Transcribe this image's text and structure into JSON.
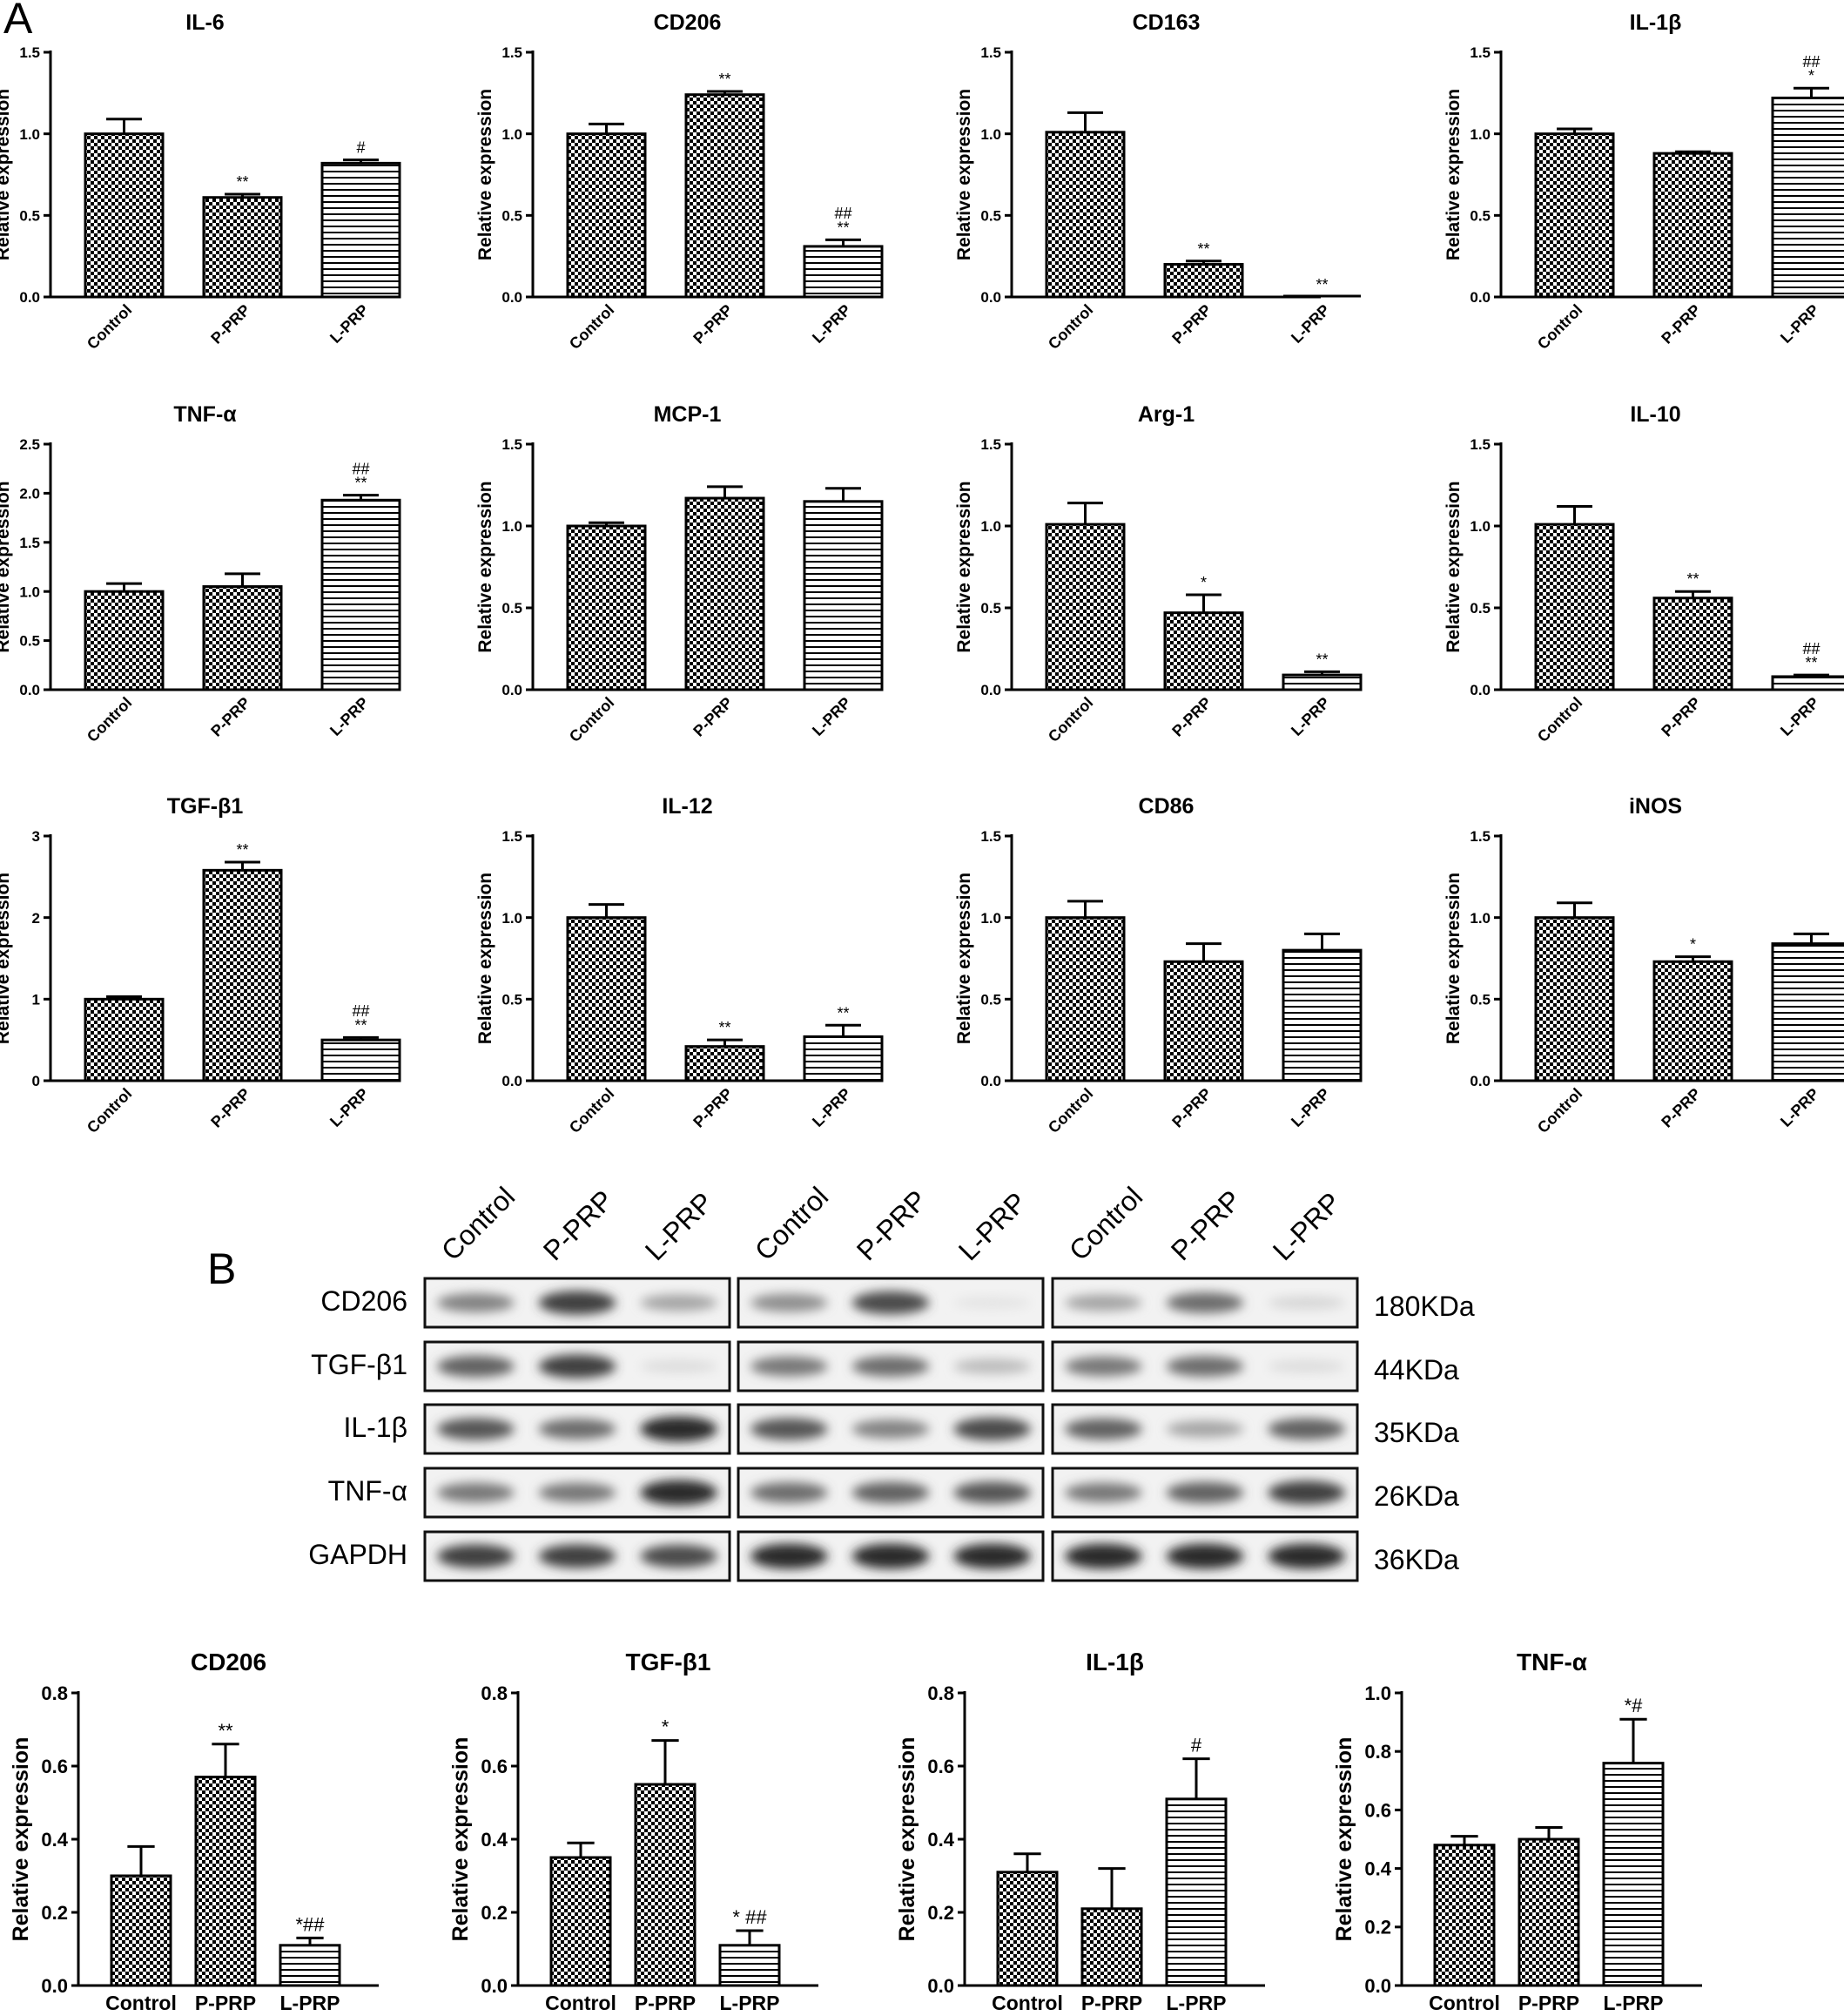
{
  "panel_labels": [
    "A",
    "B"
  ],
  "ylabel": "Relative expression",
  "groups": [
    "Control",
    "P-PRP",
    "L-PRP"
  ],
  "chart_data": [
    {
      "type": "bar",
      "title": "IL-6",
      "categories": [
        "Control",
        "P-PRP",
        "L-PRP"
      ],
      "values": [
        1.0,
        0.61,
        0.82
      ],
      "errors": [
        0.09,
        0.02,
        0.02
      ],
      "annotations": [
        "",
        "**",
        "#"
      ],
      "ylim": [
        0,
        1.5
      ],
      "yticks": [
        "0.0",
        "0.5",
        "1.0",
        "1.5"
      ],
      "xlabel": "",
      "ylabel": "Relative expression"
    },
    {
      "type": "bar",
      "title": "CD206",
      "categories": [
        "Control",
        "P-PRP",
        "L-PRP"
      ],
      "values": [
        1.0,
        1.24,
        0.31
      ],
      "errors": [
        0.06,
        0.02,
        0.04
      ],
      "annotations": [
        "",
        "**",
        "##\n**"
      ],
      "ylim": [
        0,
        1.5
      ],
      "yticks": [
        "0.0",
        "0.5",
        "1.0",
        "1.5"
      ],
      "xlabel": "",
      "ylabel": "Relative expression"
    },
    {
      "type": "bar",
      "title": "CD163",
      "categories": [
        "Control",
        "P-PRP",
        "L-PRP"
      ],
      "values": [
        1.01,
        0.2,
        0.0
      ],
      "errors": [
        0.12,
        0.02,
        0.0
      ],
      "annotations": [
        "",
        "**",
        "**"
      ],
      "ylim": [
        0,
        1.5
      ],
      "yticks": [
        "0.0",
        "0.5",
        "1.0",
        "1.5"
      ],
      "xlabel": "",
      "ylabel": "Relative expression"
    },
    {
      "type": "bar",
      "title": "IL-1β",
      "categories": [
        "Control",
        "P-PRP",
        "L-PRP"
      ],
      "values": [
        1.0,
        0.88,
        1.22
      ],
      "errors": [
        0.03,
        0.01,
        0.06
      ],
      "annotations": [
        "",
        "",
        "##\n*"
      ],
      "ylim": [
        0,
        1.5
      ],
      "yticks": [
        "0.0",
        "0.5",
        "1.0",
        "1.5"
      ],
      "xlabel": "",
      "ylabel": "Relative expression"
    },
    {
      "type": "bar",
      "title": "TNF-α",
      "categories": [
        "Control",
        "P-PRP",
        "L-PRP"
      ],
      "values": [
        1.0,
        1.05,
        1.93
      ],
      "errors": [
        0.08,
        0.13,
        0.05
      ],
      "annotations": [
        "",
        "",
        "##\n**"
      ],
      "ylim": [
        0,
        2.5
      ],
      "yticks": [
        "0.0",
        "0.5",
        "1.0",
        "1.5",
        "2.0",
        "2.5"
      ],
      "xlabel": "",
      "ylabel": "Relative expression"
    },
    {
      "type": "bar",
      "title": "MCP-1",
      "categories": [
        "Control",
        "P-PRP",
        "L-PRP"
      ],
      "values": [
        1.0,
        1.17,
        1.15
      ],
      "errors": [
        0.02,
        0.07,
        0.08
      ],
      "annotations": [
        "",
        "",
        ""
      ],
      "ylim": [
        0,
        1.5
      ],
      "yticks": [
        "0.0",
        "0.5",
        "1.0",
        "1.5"
      ],
      "xlabel": "",
      "ylabel": "Relative expression"
    },
    {
      "type": "bar",
      "title": "Arg-1",
      "categories": [
        "Control",
        "P-PRP",
        "L-PRP"
      ],
      "values": [
        1.01,
        0.47,
        0.09
      ],
      "errors": [
        0.13,
        0.11,
        0.02
      ],
      "annotations": [
        "",
        "*",
        "**"
      ],
      "ylim": [
        0,
        1.5
      ],
      "yticks": [
        "0.0",
        "0.5",
        "1.0",
        "1.5"
      ],
      "xlabel": "",
      "ylabel": "Relative expression"
    },
    {
      "type": "bar",
      "title": "IL-10",
      "categories": [
        "Control",
        "P-PRP",
        "L-PRP"
      ],
      "values": [
        1.01,
        0.56,
        0.08
      ],
      "errors": [
        0.11,
        0.04,
        0.01
      ],
      "annotations": [
        "",
        "**",
        "##\n**"
      ],
      "ylim": [
        0,
        1.5
      ],
      "yticks": [
        "0.0",
        "0.5",
        "1.0",
        "1.5"
      ],
      "xlabel": "",
      "ylabel": "Relative expression"
    },
    {
      "type": "bar",
      "title": "TGF-β1",
      "categories": [
        "Control",
        "P-PRP",
        "L-PRP"
      ],
      "values": [
        1.0,
        2.58,
        0.5
      ],
      "errors": [
        0.03,
        0.1,
        0.03
      ],
      "annotations": [
        "",
        "**",
        "##\n**"
      ],
      "ylim": [
        0,
        3
      ],
      "yticks": [
        "0",
        "1",
        "2",
        "3"
      ],
      "xlabel": "",
      "ylabel": "Relative expression"
    },
    {
      "type": "bar",
      "title": "IL-12",
      "categories": [
        "Control",
        "P-PRP",
        "L-PRP"
      ],
      "values": [
        1.0,
        0.21,
        0.27
      ],
      "errors": [
        0.08,
        0.04,
        0.07
      ],
      "annotations": [
        "",
        "**",
        "**"
      ],
      "ylim": [
        0,
        1.5
      ],
      "yticks": [
        "0.0",
        "0.5",
        "1.0",
        "1.5"
      ],
      "xlabel": "",
      "ylabel": "Relative expression"
    },
    {
      "type": "bar",
      "title": "CD86",
      "categories": [
        "Control",
        "P-PRP",
        "L-PRP"
      ],
      "values": [
        1.0,
        0.73,
        0.8
      ],
      "errors": [
        0.1,
        0.11,
        0.1
      ],
      "annotations": [
        "",
        "",
        ""
      ],
      "ylim": [
        0,
        1.5
      ],
      "yticks": [
        "0.0",
        "0.5",
        "1.0",
        "1.5"
      ],
      "xlabel": "",
      "ylabel": "Relative expression"
    },
    {
      "type": "bar",
      "title": "iNOS",
      "categories": [
        "Control",
        "P-PRP",
        "L-PRP"
      ],
      "values": [
        1.0,
        0.73,
        0.84
      ],
      "errors": [
        0.09,
        0.03,
        0.06
      ],
      "annotations": [
        "",
        "*",
        ""
      ],
      "ylim": [
        0,
        1.5
      ],
      "yticks": [
        "0.0",
        "0.5",
        "1.0",
        "1.5"
      ],
      "xlabel": "",
      "ylabel": "Relative expression"
    },
    {
      "type": "bar",
      "title": "CD206",
      "categories": [
        "Control",
        "P-PRP",
        "L-PRP"
      ],
      "values": [
        0.3,
        0.57,
        0.11
      ],
      "errors": [
        0.08,
        0.09,
        0.02
      ],
      "annotations": [
        "",
        "**",
        "*##"
      ],
      "ylim": [
        0,
        0.8
      ],
      "yticks": [
        "0.0",
        "0.2",
        "0.4",
        "0.6",
        "0.8"
      ],
      "xlabel": "",
      "ylabel": "Relative expression"
    },
    {
      "type": "bar",
      "title": "TGF-β1",
      "categories": [
        "Control",
        "P-PRP",
        "L-PRP"
      ],
      "values": [
        0.35,
        0.55,
        0.11
      ],
      "errors": [
        0.04,
        0.12,
        0.04
      ],
      "annotations": [
        "",
        "*",
        "* ##"
      ],
      "ylim": [
        0,
        0.8
      ],
      "yticks": [
        "0.0",
        "0.2",
        "0.4",
        "0.6",
        "0.8"
      ],
      "xlabel": "",
      "ylabel": "Relative expression"
    },
    {
      "type": "bar",
      "title": "IL-1β",
      "categories": [
        "Control",
        "P-PRP",
        "L-PRP"
      ],
      "values": [
        0.31,
        0.21,
        0.51
      ],
      "errors": [
        0.05,
        0.11,
        0.11
      ],
      "annotations": [
        "",
        "",
        "#"
      ],
      "ylim": [
        0,
        0.8
      ],
      "yticks": [
        "0.0",
        "0.2",
        "0.4",
        "0.6",
        "0.8"
      ],
      "xlabel": "",
      "ylabel": "Relative expression"
    },
    {
      "type": "bar",
      "title": "TNF-α",
      "categories": [
        "Control",
        "P-PRP",
        "L-PRP"
      ],
      "values": [
        0.48,
        0.5,
        0.76
      ],
      "errors": [
        0.03,
        0.04,
        0.15
      ],
      "annotations": [
        "",
        "",
        "*#"
      ],
      "ylim": [
        0,
        1.0
      ],
      "yticks": [
        "0.0",
        "0.2",
        "0.4",
        "0.6",
        "0.8",
        "1.0"
      ],
      "xlabel": "",
      "ylabel": "Relative expression"
    }
  ],
  "blot": {
    "lanes": [
      "Control",
      "P-PRP",
      "L-PRP",
      "Control",
      "P-PRP",
      "L-PRP",
      "Control",
      "P-PRP",
      "L-PRP"
    ],
    "rows": [
      {
        "label": "CD206",
        "size": "180KDa",
        "intensity": [
          0.55,
          0.85,
          0.4,
          0.5,
          0.8,
          0.12,
          0.4,
          0.65,
          0.18
        ]
      },
      {
        "label": "TGF-β1",
        "size": "44KDa",
        "intensity": [
          0.7,
          0.85,
          0.15,
          0.6,
          0.65,
          0.3,
          0.6,
          0.65,
          0.15
        ]
      },
      {
        "label": "IL-1β",
        "size": "35KDa",
        "intensity": [
          0.75,
          0.65,
          0.95,
          0.75,
          0.55,
          0.8,
          0.7,
          0.4,
          0.7
        ]
      },
      {
        "label": "TNF-α",
        "size": "26KDa",
        "intensity": [
          0.6,
          0.6,
          0.95,
          0.65,
          0.7,
          0.75,
          0.6,
          0.7,
          0.85
        ]
      },
      {
        "label": "GAPDH",
        "size": "36KDa",
        "intensity": [
          0.85,
          0.85,
          0.8,
          0.95,
          0.95,
          0.95,
          0.95,
          0.95,
          0.95
        ]
      }
    ]
  }
}
